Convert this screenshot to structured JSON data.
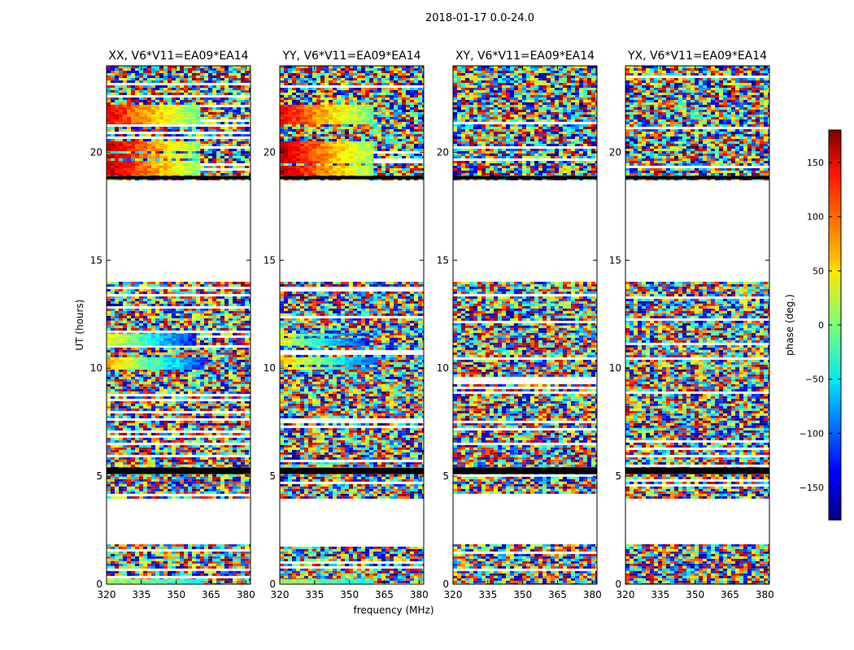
{
  "chart_data": {
    "type": "heatmap",
    "suptitle": "2018-01-17 0.0-24.0",
    "xlabel": "frequency (MHz)",
    "ylabel": "UT (hours)",
    "xlim": [
      320,
      382
    ],
    "ylim": [
      0,
      24
    ],
    "xticks": [
      320,
      335,
      350,
      365,
      380
    ],
    "yticks": [
      0,
      5,
      10,
      15,
      20
    ],
    "panels": [
      {
        "title": "XX, V6*V11=EA09*EA14",
        "pol": "XX"
      },
      {
        "title": "YY, V6*V11=EA09*EA14",
        "pol": "YY"
      },
      {
        "title": "XY, V6*V11=EA09*EA14",
        "pol": "XY"
      },
      {
        "title": "YX, V6*V11=EA09*EA14",
        "pol": "YX"
      }
    ],
    "colorbar": {
      "label": "phase (deg.)",
      "colormap": "jet",
      "range": [
        -180,
        180
      ],
      "ticks": [
        -150,
        -100,
        -50,
        0,
        50,
        100,
        150
      ]
    },
    "data_ut_ranges": [
      [
        0.0,
        1.85
      ],
      [
        4.0,
        14.0
      ],
      [
        18.75,
        24.0
      ]
    ],
    "flagged_ut_ranges": [
      [
        5.1,
        5.4
      ],
      [
        18.75,
        18.9
      ]
    ],
    "coherent_phase_bands": [
      {
        "pols": [
          "XX",
          "YY"
        ],
        "ut": [
          0.1,
          0.35
        ],
        "freq": [
          320,
          360
        ],
        "phase_start": 20,
        "phase_end": -40
      },
      {
        "pols": [
          "XX",
          "YY"
        ],
        "ut": [
          10.0,
          10.5
        ],
        "freq": [
          320,
          362
        ],
        "phase_start": 70,
        "phase_end": -120
      },
      {
        "pols": [
          "XX",
          "YY"
        ],
        "ut": [
          11.05,
          11.6
        ],
        "freq": [
          320,
          358
        ],
        "phase_start": 40,
        "phase_end": -130
      },
      {
        "pols": [
          "XX",
          "YY"
        ],
        "ut": [
          19.0,
          20.5
        ],
        "freq": [
          320,
          360
        ],
        "phase_start": 160,
        "phase_end": 0
      },
      {
        "pols": [
          "XX",
          "YY"
        ],
        "ut": [
          21.3,
          22.2
        ],
        "freq": [
          320,
          360
        ],
        "phase_start": 140,
        "phase_end": -10
      }
    ]
  }
}
